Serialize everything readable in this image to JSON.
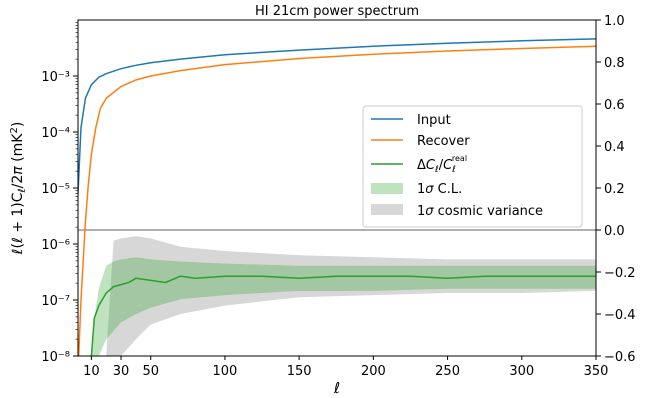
{
  "chart_data": {
    "type": "line",
    "title": "HI 21cm power spectrum",
    "xlabel": "ℓ",
    "ylabel_left": "ℓ(ℓ+1)C_ℓ/2π (mK²)",
    "xlim": [
      1,
      350
    ],
    "ylim_left": [
      1e-08,
      0.01
    ],
    "yscale_left": "log",
    "ylim_right": [
      -0.6,
      1.0
    ],
    "x_ticks": [
      "10",
      "30",
      "50",
      "100",
      "150",
      "200",
      "250",
      "300",
      "350"
    ],
    "x_tick_values": [
      10,
      30,
      50,
      100,
      150,
      200,
      250,
      300,
      350
    ],
    "y_left_ticks": [
      "10⁻⁸",
      "10⁻⁷",
      "10⁻⁶",
      "10⁻⁵",
      "10⁻⁴",
      "10⁻³"
    ],
    "y_left_tick_values": [
      1e-08,
      1e-07,
      1e-06,
      1e-05,
      0.0001,
      0.001
    ],
    "y_right_ticks": [
      "−0.6",
      "−0.4",
      "−0.2",
      "0.0",
      "0.2",
      "0.4",
      "0.6",
      "0.8",
      "1.0"
    ],
    "y_right_tick_values": [
      -0.6,
      -0.4,
      -0.2,
      0.0,
      0.2,
      0.4,
      0.6,
      0.8,
      1.0
    ],
    "zero_line": 0.0,
    "legend_position": "center-right",
    "series": [
      {
        "name": "Input",
        "axis": "left",
        "color": "#1f77b4",
        "x": [
          1,
          3,
          6,
          10,
          15,
          20,
          30,
          40,
          50,
          70,
          100,
          150,
          200,
          250,
          300,
          350
        ],
        "y": [
          8e-06,
          0.00012,
          0.0004,
          0.0007,
          0.00095,
          0.0011,
          0.00135,
          0.00155,
          0.00172,
          0.002,
          0.0024,
          0.0029,
          0.0034,
          0.00385,
          0.00425,
          0.0046
        ]
      },
      {
        "name": "Recover",
        "axis": "left",
        "color": "#ff7f0e",
        "x": [
          1,
          3,
          6,
          8,
          10,
          13,
          16,
          20,
          30,
          40,
          50,
          70,
          100,
          150,
          200,
          250,
          300,
          350
        ],
        "y": [
          5e-09,
          1e-07,
          2.5e-06,
          1.2e-05,
          4e-05,
          0.00012,
          0.00026,
          0.0004,
          0.00065,
          0.00085,
          0.001,
          0.00125,
          0.0016,
          0.00205,
          0.00245,
          0.0028,
          0.0031,
          0.0034
        ]
      },
      {
        "name": "ΔC_ℓ/C_ℓ^real",
        "axis": "right",
        "color": "#2ca02c",
        "x": [
          10,
          12,
          15,
          20,
          25,
          30,
          35,
          40,
          50,
          60,
          70,
          80,
          100,
          125,
          150,
          175,
          200,
          225,
          250,
          275,
          300,
          325,
          350
        ],
        "y": [
          -0.6,
          -0.42,
          -0.36,
          -0.3,
          -0.27,
          -0.26,
          -0.25,
          -0.23,
          -0.24,
          -0.25,
          -0.22,
          -0.23,
          -0.22,
          -0.22,
          -0.23,
          -0.22,
          -0.22,
          -0.22,
          -0.23,
          -0.22,
          -0.22,
          -0.22,
          -0.22
        ]
      }
    ],
    "bands": [
      {
        "name": "1σ C.L.",
        "axis": "right",
        "color": "#2ca02c",
        "opacity": 0.3,
        "x": [
          10,
          12,
          15,
          20,
          25,
          30,
          40,
          50,
          70,
          100,
          150,
          200,
          250,
          300,
          350
        ],
        "lower": [
          -0.6,
          -0.6,
          -0.6,
          -0.52,
          -0.48,
          -0.44,
          -0.4,
          -0.37,
          -0.33,
          -0.31,
          -0.29,
          -0.29,
          -0.28,
          -0.28,
          -0.28
        ],
        "upper": [
          -0.6,
          -0.42,
          -0.28,
          -0.17,
          -0.15,
          -0.14,
          -0.13,
          -0.14,
          -0.15,
          -0.16,
          -0.17,
          -0.17,
          -0.17,
          -0.17,
          -0.17
        ]
      },
      {
        "name": "1σ cosmic variance",
        "axis": "right",
        "color": "#bdbdbd",
        "opacity": 0.6,
        "x": [
          20,
          25,
          30,
          40,
          50,
          70,
          100,
          150,
          200,
          250,
          300,
          350
        ],
        "lower": [
          -0.6,
          -0.6,
          -0.6,
          -0.52,
          -0.45,
          -0.4,
          -0.36,
          -0.32,
          -0.31,
          -0.3,
          -0.3,
          -0.29
        ],
        "upper": [
          -0.6,
          -0.05,
          -0.04,
          -0.03,
          -0.04,
          -0.08,
          -0.1,
          -0.12,
          -0.13,
          -0.14,
          -0.14,
          -0.14
        ]
      }
    ]
  }
}
